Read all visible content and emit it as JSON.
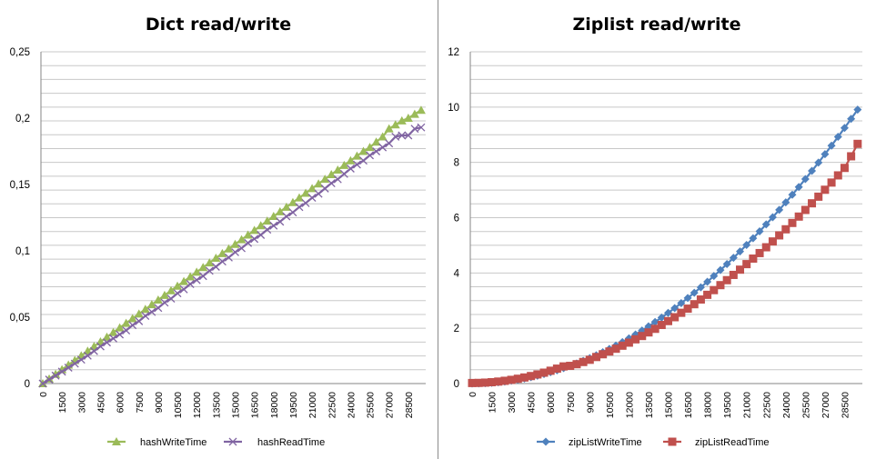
{
  "chart_data": [
    {
      "type": "line",
      "title": "Dict read/write",
      "xlabel": "",
      "ylabel": "",
      "ylim": [
        0,
        0.25
      ],
      "yticks": [
        "0",
        "0,05",
        "0,1",
        "0,15",
        "0,2",
        "0,25"
      ],
      "xticks": [
        "0",
        "1500",
        "3000",
        "4500",
        "6000",
        "7500",
        "9000",
        "10500",
        "12000",
        "13500",
        "15000",
        "16500",
        "18000",
        "19500",
        "21000",
        "22500",
        "24000",
        "25500",
        "27000",
        "28500"
      ],
      "grid": true,
      "legend": "bottom",
      "x": [
        0,
        500,
        1000,
        1500,
        2000,
        2500,
        3000,
        3500,
        4000,
        4500,
        5000,
        5500,
        6000,
        6500,
        7000,
        7500,
        8000,
        8500,
        9000,
        9500,
        10000,
        10500,
        11000,
        11500,
        12000,
        12500,
        13000,
        13500,
        14000,
        14500,
        15000,
        15500,
        16000,
        16500,
        17000,
        17500,
        18000,
        18500,
        19000,
        19500,
        20000,
        20500,
        21000,
        21500,
        22000,
        22500,
        23000,
        23500,
        24000,
        24500,
        25000,
        25500,
        26000,
        26500,
        27000,
        27500,
        28000,
        28500,
        29000,
        29500
      ],
      "series": [
        {
          "name": "hashWriteTime",
          "color": "#9BBB59",
          "marker": "triangle",
          "values": [
            0,
            0.0035,
            0.007,
            0.0105,
            0.014,
            0.0175,
            0.021,
            0.0245,
            0.028,
            0.0315,
            0.035,
            0.0385,
            0.042,
            0.0455,
            0.049,
            0.0525,
            0.056,
            0.0595,
            0.063,
            0.0665,
            0.07,
            0.0735,
            0.077,
            0.0805,
            0.084,
            0.0875,
            0.091,
            0.0945,
            0.098,
            0.1015,
            0.105,
            0.1085,
            0.112,
            0.1155,
            0.119,
            0.1225,
            0.126,
            0.1295,
            0.133,
            0.1365,
            0.14,
            0.1435,
            0.147,
            0.1505,
            0.154,
            0.1575,
            0.161,
            0.1645,
            0.168,
            0.1715,
            0.175,
            0.178,
            0.182,
            0.186,
            0.192,
            0.195,
            0.198,
            0.2,
            0.203,
            0.206
          ]
        },
        {
          "name": "hashReadTime",
          "color": "#8064A2",
          "marker": "x",
          "values": [
            0,
            0.003,
            0.006,
            0.009,
            0.012,
            0.015,
            0.018,
            0.021,
            0.0245,
            0.028,
            0.031,
            0.034,
            0.037,
            0.04,
            0.044,
            0.047,
            0.051,
            0.054,
            0.057,
            0.061,
            0.064,
            0.068,
            0.071,
            0.075,
            0.078,
            0.081,
            0.085,
            0.088,
            0.092,
            0.095,
            0.099,
            0.102,
            0.106,
            0.109,
            0.112,
            0.116,
            0.119,
            0.122,
            0.126,
            0.129,
            0.133,
            0.136,
            0.14,
            0.143,
            0.147,
            0.151,
            0.154,
            0.158,
            0.162,
            0.165,
            0.168,
            0.172,
            0.175,
            0.178,
            0.181,
            0.186,
            0.187,
            0.187,
            0.192,
            0.193
          ]
        }
      ]
    },
    {
      "type": "line",
      "title": "Ziplist read/write",
      "xlabel": "",
      "ylabel": "",
      "ylim": [
        0,
        12
      ],
      "yticks": [
        "0",
        "2",
        "4",
        "6",
        "8",
        "10",
        "12"
      ],
      "xticks": [
        "0",
        "1500",
        "3000",
        "4500",
        "6000",
        "7500",
        "9000",
        "10500",
        "12000",
        "13500",
        "15000",
        "16500",
        "18000",
        "19500",
        "21000",
        "22500",
        "24000",
        "25500",
        "27000",
        "28500"
      ],
      "grid": true,
      "legend": "bottom",
      "x": [
        0,
        500,
        1000,
        1500,
        2000,
        2500,
        3000,
        3500,
        4000,
        4500,
        5000,
        5500,
        6000,
        6500,
        7000,
        7500,
        8000,
        8500,
        9000,
        9500,
        10000,
        10500,
        11000,
        11500,
        12000,
        12500,
        13000,
        13500,
        14000,
        14500,
        15000,
        15500,
        16000,
        16500,
        17000,
        17500,
        18000,
        18500,
        19000,
        19500,
        20000,
        20500,
        21000,
        21500,
        22000,
        22500,
        23000,
        23500,
        24000,
        24500,
        25000,
        25500,
        26000,
        26500,
        27000,
        27500,
        28000,
        28500,
        29000,
        29500
      ],
      "series": [
        {
          "name": "zipListWriteTime",
          "color": "#4F81BD",
          "marker": "diamond",
          "values": [
            0,
            0.003,
            0.011,
            0.026,
            0.045,
            0.071,
            0.102,
            0.139,
            0.182,
            0.23,
            0.284,
            0.344,
            0.409,
            0.48,
            0.557,
            0.639,
            0.727,
            0.821,
            0.92,
            1.025,
            1.136,
            1.252,
            1.375,
            1.502,
            1.636,
            1.775,
            1.92,
            2.071,
            2.227,
            2.389,
            2.557,
            2.73,
            2.91,
            3.094,
            3.285,
            3.481,
            3.683,
            3.891,
            4.104,
            4.323,
            4.548,
            4.779,
            5.015,
            5.257,
            5.505,
            5.758,
            6.018,
            6.282,
            6.553,
            6.829,
            7.111,
            7.399,
            7.693,
            7.992,
            8.297,
            8.607,
            8.924,
            9.246,
            9.574,
            9.908
          ]
        },
        {
          "name": "zipListReadTime",
          "color": "#C0504D",
          "marker": "square",
          "values": [
            0.02,
            0.024,
            0.034,
            0.05,
            0.072,
            0.1,
            0.134,
            0.174,
            0.22,
            0.272,
            0.33,
            0.394,
            0.464,
            0.54,
            0.62,
            0.64,
            0.7,
            0.78,
            0.86,
            0.96,
            1.06,
            1.16,
            1.26,
            1.37,
            1.48,
            1.6,
            1.72,
            1.85,
            1.98,
            2.12,
            2.26,
            2.4,
            2.56,
            2.71,
            2.87,
            3.04,
            3.21,
            3.38,
            3.56,
            3.74,
            3.93,
            4.12,
            4.32,
            4.52,
            4.72,
            4.93,
            5.14,
            5.36,
            5.58,
            5.81,
            6.04,
            6.28,
            6.52,
            6.76,
            7.01,
            7.27,
            7.53,
            7.8,
            8.22,
            8.67
          ]
        }
      ]
    }
  ]
}
